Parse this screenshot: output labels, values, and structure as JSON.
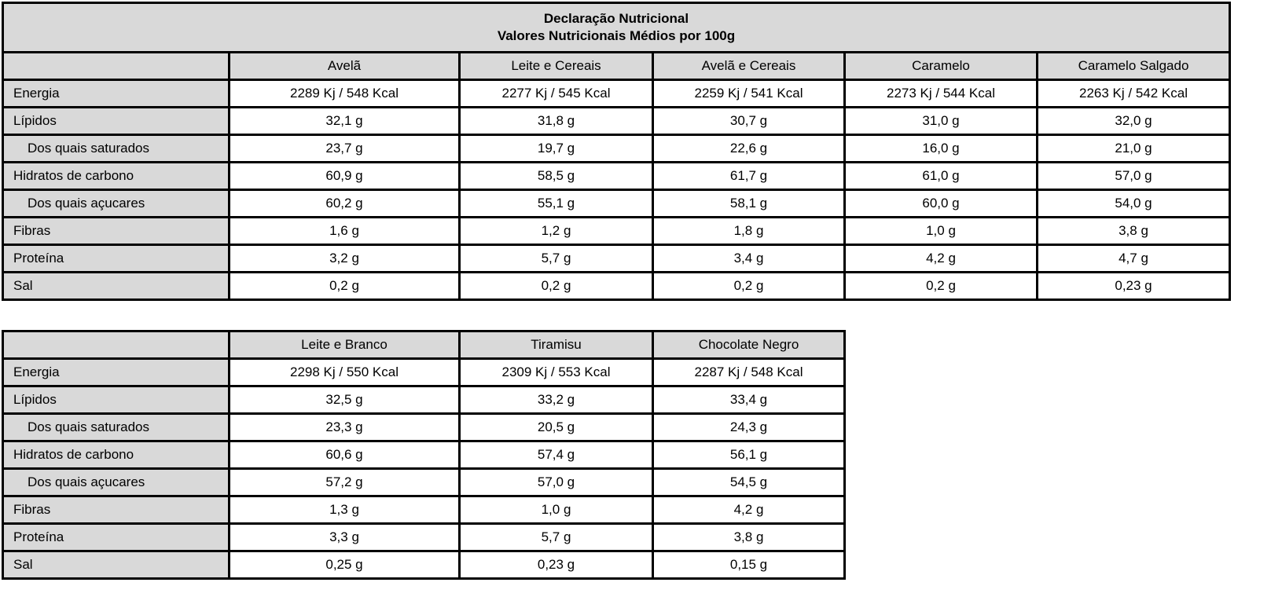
{
  "title": "Declaração Nutricional",
  "subtitle": "Valores Nutricionais Médios por 100g",
  "row_labels": [
    "Energia",
    "Lípidos",
    "Dos quais saturados",
    "Hidratos de carbono",
    "Dos quais açucares",
    "Fibras",
    "Proteína",
    "Sal"
  ],
  "table1": {
    "columns": [
      "Avelã",
      "Leite e Cereais",
      "Avelã e Cereais",
      "Caramelo",
      "Caramelo Salgado"
    ],
    "rows": [
      [
        "2289 Kj / 548 Kcal",
        "2277 Kj / 545 Kcal",
        "2259 Kj / 541 Kcal",
        "2273 Kj / 544 Kcal",
        "2263 Kj / 542 Kcal"
      ],
      [
        "32,1 g",
        "31,8 g",
        "30,7 g",
        "31,0 g",
        "32,0 g"
      ],
      [
        "23,7 g",
        "19,7 g",
        "22,6 g",
        "16,0 g",
        "21,0 g"
      ],
      [
        "60,9 g",
        "58,5 g",
        "61,7 g",
        "61,0 g",
        "57,0 g"
      ],
      [
        "60,2 g",
        "55,1 g",
        "58,1 g",
        "60,0 g",
        "54,0 g"
      ],
      [
        "1,6 g",
        "1,2 g",
        "1,8 g",
        "1,0 g",
        "3,8 g"
      ],
      [
        "3,2 g",
        "5,7 g",
        "3,4 g",
        "4,2 g",
        "4,7 g"
      ],
      [
        "0,2 g",
        "0,2 g",
        "0,2 g",
        "0,2 g",
        "0,23 g"
      ]
    ]
  },
  "table2": {
    "columns": [
      "Leite e Branco",
      "Tiramisu",
      "Chocolate Negro"
    ],
    "rows": [
      [
        "2298 Kj / 550 Kcal",
        "2309 Kj / 553 Kcal",
        "2287 Kj / 548 Kcal"
      ],
      [
        "32,5 g",
        "33,2 g",
        "33,4 g"
      ],
      [
        "23,3 g",
        "20,5 g",
        "24,3 g"
      ],
      [
        "60,6 g",
        "57,4 g",
        "56,1 g"
      ],
      [
        "57,2 g",
        "57,0 g",
        "54,5 g"
      ],
      [
        "1,3 g",
        "1,0 g",
        "4,2 g"
      ],
      [
        "3,3 g",
        "5,7 g",
        "3,8 g"
      ],
      [
        "0,25 g",
        "0,23 g",
        "0,15 g"
      ]
    ]
  }
}
